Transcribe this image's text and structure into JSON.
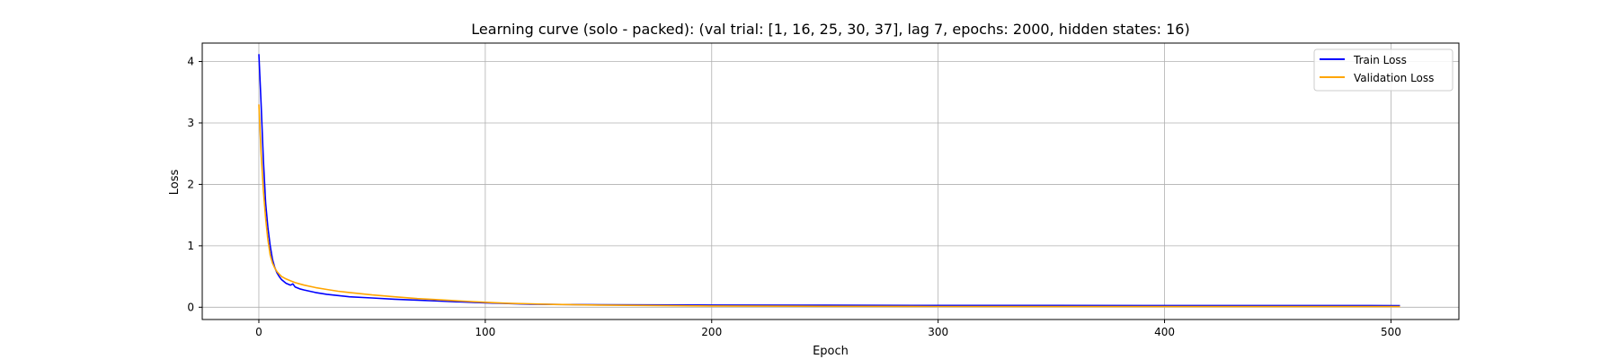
{
  "chart_data": {
    "type": "line",
    "title": "Learning curve (solo - packed): (val trial: [1, 16, 25, 30, 37], lag 7, epochs: 2000, hidden states: 16)",
    "xlabel": "Epoch",
    "ylabel": "Loss",
    "xlim": [
      -25,
      530
    ],
    "ylim": [
      -0.2,
      4.3
    ],
    "xticks": [
      0,
      100,
      200,
      300,
      400,
      500
    ],
    "yticks": [
      0,
      1,
      2,
      3,
      4
    ],
    "grid": true,
    "legend_position": "top-right",
    "series": [
      {
        "name": "Train Loss",
        "color": "#0000ff",
        "x": [
          0,
          1,
          2,
          3,
          4,
          5,
          6,
          7,
          8,
          9,
          10,
          12,
          14,
          15,
          16,
          18,
          20,
          25,
          30,
          35,
          40,
          50,
          60,
          70,
          80,
          90,
          100,
          110,
          120,
          130,
          150,
          200,
          250,
          300,
          350,
          400,
          450,
          504
        ],
        "y": [
          4.12,
          3.3,
          2.4,
          1.7,
          1.3,
          1.0,
          0.78,
          0.65,
          0.56,
          0.5,
          0.45,
          0.39,
          0.36,
          0.38,
          0.33,
          0.3,
          0.28,
          0.24,
          0.21,
          0.19,
          0.17,
          0.15,
          0.13,
          0.115,
          0.1,
          0.085,
          0.07,
          0.06,
          0.05,
          0.045,
          0.04,
          0.035,
          0.032,
          0.03,
          0.03,
          0.028,
          0.028,
          0.027
        ]
      },
      {
        "name": "Validation Loss",
        "color": "#ffa500",
        "x": [
          0,
          1,
          2,
          3,
          4,
          5,
          6,
          7,
          8,
          9,
          10,
          12,
          14,
          16,
          18,
          20,
          25,
          30,
          35,
          40,
          50,
          60,
          70,
          80,
          90,
          100,
          110,
          120,
          130,
          150,
          200,
          250,
          300,
          350,
          400,
          450,
          504
        ],
        "y": [
          3.3,
          2.5,
          1.9,
          1.45,
          1.1,
          0.85,
          0.72,
          0.64,
          0.58,
          0.54,
          0.5,
          0.46,
          0.43,
          0.4,
          0.38,
          0.36,
          0.32,
          0.29,
          0.26,
          0.24,
          0.2,
          0.17,
          0.14,
          0.12,
          0.1,
          0.08,
          0.065,
          0.055,
          0.045,
          0.035,
          0.02,
          0.015,
          0.012,
          0.01,
          0.01,
          0.01,
          0.01
        ]
      }
    ]
  }
}
